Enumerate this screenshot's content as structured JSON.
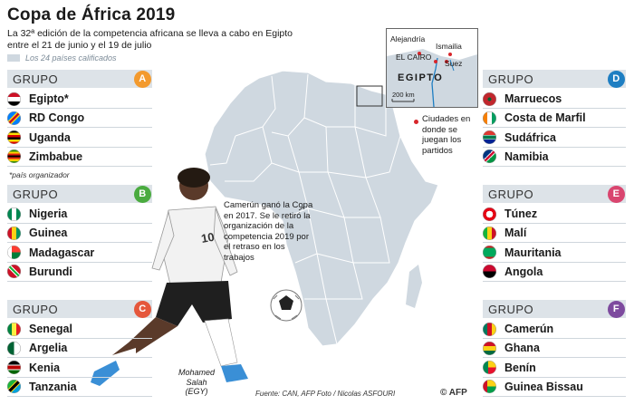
{
  "title": "Copa de África 2019",
  "subtitle": "La 32ª edición de la competencia africana se lleva a cabo en Egipto entre el 21 de junio y el 19 de julio",
  "legend": "Los 24 países calificados",
  "group_word": "GRUPO",
  "organizer_note": "*país organizador",
  "groups": [
    {
      "letter": "A",
      "color": "#f39a2e",
      "teams": [
        "Egipto*",
        "RD Congo",
        "Uganda",
        "Zimbabue"
      ],
      "flag_icons": [
        "egypt-flag-icon",
        "dr-congo-flag-icon",
        "uganda-flag-icon",
        "zimbabwe-flag-icon"
      ]
    },
    {
      "letter": "B",
      "color": "#4aab3f",
      "teams": [
        "Nigeria",
        "Guinea",
        "Madagascar",
        "Burundi"
      ],
      "flag_icons": [
        "nigeria-flag-icon",
        "guinea-flag-icon",
        "madagascar-flag-icon",
        "burundi-flag-icon"
      ]
    },
    {
      "letter": "C",
      "color": "#e5573c",
      "teams": [
        "Senegal",
        "Argelia",
        "Kenia",
        "Tanzania"
      ],
      "flag_icons": [
        "senegal-flag-icon",
        "algeria-flag-icon",
        "kenya-flag-icon",
        "tanzania-flag-icon"
      ]
    },
    {
      "letter": "D",
      "color": "#1e7ec2",
      "teams": [
        "Marruecos",
        "Costa de Marfil",
        "Sudáfrica",
        "Namibia"
      ],
      "flag_icons": [
        "morocco-flag-icon",
        "ivory-coast-flag-icon",
        "south-africa-flag-icon",
        "namibia-flag-icon"
      ]
    },
    {
      "letter": "E",
      "color": "#d9456f",
      "teams": [
        "Túnez",
        "Malí",
        "Mauritania",
        "Angola"
      ],
      "flag_icons": [
        "tunisia-flag-icon",
        "mali-flag-icon",
        "mauritania-flag-icon",
        "angola-flag-icon"
      ]
    },
    {
      "letter": "F",
      "color": "#7d4a9e",
      "teams": [
        "Camerún",
        "Ghana",
        "Benín",
        "Guinea Bissau"
      ],
      "flag_icons": [
        "cameroon-flag-icon",
        "ghana-flag-icon",
        "benin-flag-icon",
        "guinea-bissau-flag-icon"
      ]
    }
  ],
  "inset_map": {
    "country": "EGIPTO",
    "cities": [
      "Alejandría",
      "Ismailia",
      "EL CAIRO",
      "Suez"
    ],
    "scale": "200 km"
  },
  "cities_legend": "Ciudades en donde se juegan los partidos",
  "annotation": "Camerún ganó la Copa en 2017. Se le retiró la organización de la competencia 2019 por el retraso en los trabajos",
  "player_caption_name": "Mohamed Salah",
  "player_caption_country": "(EGY)",
  "source": "Fuente: CAN, AFP Foto / Nicolas ASFOURI",
  "credit": "© AFP",
  "colors": {
    "group_bar": "#dde3e8",
    "map_fill": "#cfd8e0",
    "city_dot": "#d8262b"
  }
}
